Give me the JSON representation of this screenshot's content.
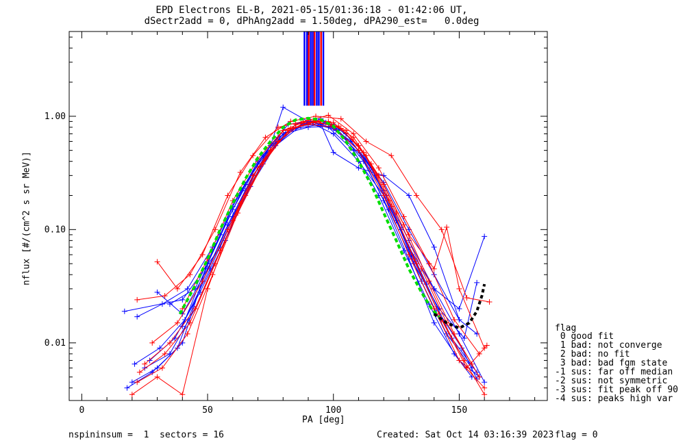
{
  "title_line1": "EPD Electrons EL-B, 2021-05-15/01:36:18 - 01:42:06 UT,",
  "title_line2": "dSectr2add = 0, dPhAng2add = 1.50deg, dPA290_est=   0.0deg",
  "footer": {
    "left": "nspininsum =  1  sectors = 16",
    "created": "Created: Sat Oct 14 03:16:39 2023",
    "flag": "flag = 0"
  },
  "legend": {
    "title": "flag",
    "items": [
      " 0 good fit",
      " 1 bad: not converge",
      " 2 bad: no fit",
      " 3 bad: bad fgm state",
      "-1 sus: far off median",
      "-2 sus: not symmetric",
      "-3 sus: fit peak off 90",
      "-4 sus: peaks high var"
    ]
  },
  "chart_data": {
    "type": "line",
    "title": "EPD Electrons EL-B, 2021-05-15/01:36:18 - 01:42:06 UT,",
    "subtitle": "dSectr2add = 0, dPhAng2add = 1.50deg, dPA290_est=   0.0deg",
    "xlabel": "PA [deg]",
    "ylabel": "nflux [#/(cm^2 s sr MeV)]",
    "xlim": [
      -5,
      185
    ],
    "ylim": [
      0.0031,
      5.6
    ],
    "yscale": "log",
    "xticks": [
      "0",
      "50",
      "100",
      "150"
    ],
    "yticks": [
      "0.01",
      "0.10",
      "1.00"
    ],
    "grid": false,
    "colors": {
      "blue": "#0000ff",
      "red": "#ff0000",
      "green": "#00dd00",
      "black": "#000000"
    },
    "fit_curve_green": {
      "x": [
        39,
        45,
        50,
        55,
        60,
        65,
        70,
        75,
        80,
        85,
        90,
        95,
        100,
        105,
        110,
        115,
        120,
        125,
        130,
        135,
        139,
        142
      ],
      "y": [
        0.018,
        0.032,
        0.055,
        0.1,
        0.17,
        0.28,
        0.43,
        0.6,
        0.8,
        0.93,
        0.96,
        0.93,
        0.82,
        0.6,
        0.4,
        0.25,
        0.14,
        0.08,
        0.045,
        0.028,
        0.02,
        0.017
      ]
    },
    "fit_curve_black": {
      "x": [
        140,
        145,
        150,
        154,
        157,
        159,
        160
      ],
      "y": [
        0.018,
        0.015,
        0.0135,
        0.015,
        0.019,
        0.026,
        0.033
      ]
    },
    "series": [
      {
        "color": "blue",
        "x": [
          17,
          40,
          55,
          65,
          75,
          80,
          90,
          100,
          110,
          120,
          130,
          140,
          150,
          160
        ],
        "y": [
          0.019,
          0.024,
          0.07,
          0.22,
          0.55,
          1.2,
          0.9,
          0.7,
          0.4,
          0.2,
          0.07,
          0.03,
          0.02,
          0.087
        ]
      },
      {
        "color": "blue",
        "x": [
          20,
          30,
          40,
          50,
          60,
          70,
          80,
          90,
          100,
          110,
          120,
          130,
          140,
          150,
          158
        ],
        "y": [
          0.0045,
          0.006,
          0.01,
          0.05,
          0.16,
          0.4,
          0.75,
          0.85,
          0.8,
          0.5,
          0.18,
          0.055,
          0.015,
          0.007,
          0.005
        ]
      },
      {
        "color": "blue",
        "x": [
          22,
          32,
          42,
          52,
          62,
          72,
          82,
          92,
          102,
          112,
          122,
          132,
          142,
          152,
          157
        ],
        "y": [
          0.017,
          0.022,
          0.03,
          0.07,
          0.2,
          0.45,
          0.85,
          0.9,
          0.75,
          0.4,
          0.15,
          0.05,
          0.02,
          0.011,
          0.034
        ]
      },
      {
        "color": "blue",
        "x": [
          25,
          35,
          45,
          55,
          65,
          75,
          85,
          95,
          105,
          115,
          125,
          135,
          145,
          155
        ],
        "y": [
          0.006,
          0.008,
          0.02,
          0.065,
          0.2,
          0.5,
          0.8,
          0.95,
          0.7,
          0.35,
          0.12,
          0.035,
          0.012,
          0.006
        ]
      },
      {
        "color": "blue",
        "x": [
          30,
          40,
          50,
          60,
          70,
          80,
          90,
          100,
          110,
          120,
          130,
          140,
          150,
          160
        ],
        "y": [
          0.028,
          0.018,
          0.045,
          0.13,
          0.35,
          0.7,
          0.88,
          0.85,
          0.55,
          0.22,
          0.08,
          0.03,
          0.012,
          0.0045
        ]
      },
      {
        "color": "blue",
        "x": [
          18,
          28,
          38,
          48,
          58,
          68,
          78,
          88,
          98,
          108,
          118,
          128,
          138,
          148,
          155
        ],
        "y": [
          0.004,
          0.0055,
          0.009,
          0.035,
          0.11,
          0.3,
          0.65,
          0.86,
          0.8,
          0.5,
          0.2,
          0.065,
          0.022,
          0.008,
          0.005
        ]
      },
      {
        "color": "blue",
        "x": [
          35,
          45,
          55,
          65,
          75,
          85,
          95,
          100,
          110,
          120,
          130,
          140,
          150
        ],
        "y": [
          0.022,
          0.03,
          0.09,
          0.25,
          0.55,
          0.78,
          0.85,
          0.48,
          0.35,
          0.3,
          0.2,
          0.07,
          0.016
        ]
      },
      {
        "color": "blue",
        "x": [
          27,
          37,
          47,
          57,
          67,
          77,
          87,
          97,
          107,
          117,
          127,
          137,
          147,
          157
        ],
        "y": [
          0.007,
          0.011,
          0.028,
          0.08,
          0.24,
          0.55,
          0.82,
          0.88,
          0.6,
          0.3,
          0.1,
          0.033,
          0.011,
          0.0055
        ]
      },
      {
        "color": "blue",
        "x": [
          40,
          50,
          60,
          70,
          80,
          90,
          100,
          110,
          120,
          130,
          140,
          150,
          157
        ],
        "y": [
          0.014,
          0.05,
          0.15,
          0.38,
          0.7,
          0.8,
          0.82,
          0.5,
          0.26,
          0.1,
          0.04,
          0.016,
          0.012
        ]
      },
      {
        "color": "blue",
        "x": [
          21,
          31,
          41,
          51,
          61,
          71,
          81,
          91,
          101,
          111,
          121,
          131,
          141,
          151,
          157
        ],
        "y": [
          0.0065,
          0.009,
          0.016,
          0.045,
          0.14,
          0.36,
          0.72,
          0.9,
          0.75,
          0.45,
          0.2,
          0.06,
          0.02,
          0.009,
          0.0048
        ]
      },
      {
        "color": "red",
        "x": [
          22,
          33,
          43,
          53,
          63,
          73,
          83,
          93,
          103,
          113,
          123,
          133,
          143,
          153,
          162
        ],
        "y": [
          0.024,
          0.026,
          0.04,
          0.1,
          0.32,
          0.65,
          0.9,
          1.0,
          0.95,
          0.6,
          0.45,
          0.2,
          0.1,
          0.025,
          0.023
        ]
      },
      {
        "color": "red",
        "x": [
          20,
          30,
          40,
          50,
          60,
          70,
          80,
          90,
          100,
          110,
          120,
          130,
          140,
          150,
          160
        ],
        "y": [
          0.0035,
          0.005,
          0.0035,
          0.03,
          0.12,
          0.35,
          0.75,
          0.85,
          0.8,
          0.5,
          0.2,
          0.06,
          0.02,
          0.007,
          0.004
        ]
      },
      {
        "color": "red",
        "x": [
          30,
          38,
          48,
          58,
          68,
          78,
          88,
          98,
          108,
          118,
          128,
          138,
          148,
          158
        ],
        "y": [
          0.052,
          0.03,
          0.06,
          0.2,
          0.45,
          0.8,
          0.9,
          1.02,
          0.7,
          0.35,
          0.13,
          0.05,
          0.016,
          0.008
        ]
      },
      {
        "color": "red",
        "x": [
          23,
          33,
          43,
          53,
          63,
          73,
          83,
          93,
          103,
          113,
          123,
          133,
          143,
          153,
          161
        ],
        "y": [
          0.0055,
          0.008,
          0.015,
          0.05,
          0.17,
          0.42,
          0.78,
          0.9,
          0.78,
          0.45,
          0.16,
          0.05,
          0.016,
          0.006,
          0.0095
        ]
      },
      {
        "color": "red",
        "x": [
          25,
          35,
          45,
          55,
          65,
          75,
          85,
          95,
          105,
          115,
          125,
          135,
          145,
          155
        ],
        "y": [
          0.0065,
          0.01,
          0.02,
          0.065,
          0.2,
          0.5,
          0.85,
          0.92,
          0.75,
          0.38,
          0.14,
          0.045,
          0.015,
          0.0065
        ]
      },
      {
        "color": "red",
        "x": [
          28,
          38,
          48,
          58,
          68,
          78,
          88,
          98,
          108,
          118,
          128,
          138,
          148,
          158
        ],
        "y": [
          0.01,
          0.015,
          0.035,
          0.1,
          0.3,
          0.6,
          0.88,
          0.9,
          0.65,
          0.3,
          0.11,
          0.035,
          0.012,
          0.005
        ]
      },
      {
        "color": "red",
        "x": [
          40,
          50,
          60,
          70,
          80,
          90,
          100,
          110,
          120,
          130,
          140,
          145,
          150,
          160
        ],
        "y": [
          0.02,
          0.055,
          0.18,
          0.42,
          0.75,
          0.92,
          0.88,
          0.55,
          0.25,
          0.09,
          0.045,
          0.105,
          0.03,
          0.009
        ]
      },
      {
        "color": "red",
        "x": [
          22,
          32,
          42,
          52,
          62,
          72,
          82,
          92,
          102,
          112,
          122,
          132,
          142,
          152,
          160
        ],
        "y": [
          0.0045,
          0.006,
          0.012,
          0.04,
          0.14,
          0.38,
          0.75,
          0.88,
          0.82,
          0.48,
          0.18,
          0.055,
          0.018,
          0.007,
          0.0035
        ]
      }
    ]
  }
}
